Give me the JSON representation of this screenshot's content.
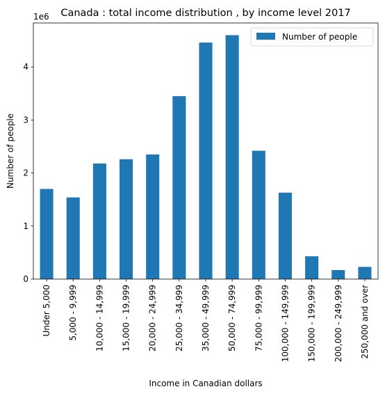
{
  "chart_data": {
    "type": "bar",
    "title": "Canada : total income distribution , by income level 2017",
    "xlabel": "Income in Canadian dollars",
    "ylabel": "Number of people",
    "y_offset_label": "1e6",
    "categories": [
      "Under 5,000",
      "5,000 - 9,999",
      "10,000 - 14,999",
      "15,000 - 19,999",
      "20,000 - 24,999",
      "25,000 - 34,999",
      "35,000 - 49,999",
      "50,000 - 74,999",
      "75,000 - 99,999",
      "100,000 - 149,999",
      "150,000 - 199,999",
      "200,000 - 249,999",
      "250,000 and over"
    ],
    "series": [
      {
        "name": "Number of people",
        "color": "#1f77b4",
        "values": [
          1700000,
          1540000,
          2180000,
          2260000,
          2350000,
          3450000,
          4460000,
          4600000,
          2420000,
          1630000,
          430000,
          170000,
          230000
        ]
      }
    ],
    "ylim": [
      0,
      4830000
    ],
    "yticks": [
      0,
      1,
      2,
      3,
      4
    ],
    "ytick_scale": 1000000,
    "grid": false,
    "legend_position": "top-right"
  }
}
